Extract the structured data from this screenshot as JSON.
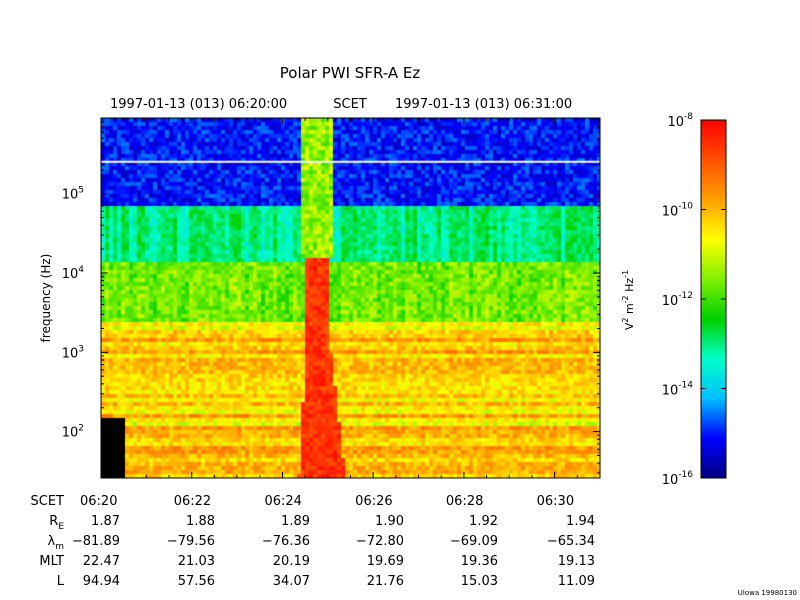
{
  "chart_data": {
    "type": "heatmap",
    "title": "Polar PWI SFR-A Ez",
    "time_range": {
      "start": "1997-01-13 (013) 06:20:00",
      "scet_label": "SCET",
      "end": "1997-01-13 (013) 06:31:00"
    },
    "ylabel": "frequency (Hz)",
    "y_scale": "log",
    "ylim": [
      26,
      900000
    ],
    "xlim_minutes": [
      0,
      11
    ],
    "y_ticks": [
      {
        "value": 100,
        "label": "10",
        "exp": "2"
      },
      {
        "value": 1000,
        "label": "10",
        "exp": "3"
      },
      {
        "value": 10000,
        "label": "10",
        "exp": "4"
      },
      {
        "value": 100000,
        "label": "10",
        "exp": "5"
      }
    ],
    "colorbar": {
      "label_parts": [
        "V",
        "2",
        " m",
        "-2",
        " Hz",
        "-1"
      ],
      "scale": "log",
      "range": [
        1e-16,
        1e-08
      ],
      "ticks": [
        {
          "value": 1e-08,
          "label": "10",
          "exp": "-8"
        },
        {
          "value": 1e-10,
          "label": "10",
          "exp": "-10"
        },
        {
          "value": 1e-12,
          "label": "10",
          "exp": "-12"
        },
        {
          "value": 1e-14,
          "label": "10",
          "exp": "-14"
        },
        {
          "value": 1e-16,
          "label": "10",
          "exp": "-16"
        }
      ]
    },
    "ephemeris": {
      "rows": [
        {
          "label": "SCET",
          "values": [
            "06:20",
            "06:22",
            "06:24",
            "06:26",
            "06:28",
            "06:30"
          ]
        },
        {
          "label": "R",
          "sub": "E",
          "values": [
            "1.87",
            "1.88",
            "1.89",
            "1.90",
            "1.92",
            "1.94"
          ]
        },
        {
          "label": "λ",
          "sub": "m",
          "values": [
            "−81.89",
            "−79.56",
            "−76.36",
            "−72.80",
            "−69.09",
            "−65.34"
          ]
        },
        {
          "label": "MLT",
          "values": [
            "22.47",
            "21.03",
            "20.19",
            "19.69",
            "19.36",
            "19.13"
          ]
        },
        {
          "label": "L",
          "values": [
            "94.94",
            "57.56",
            "34.07",
            "21.76",
            "15.03",
            "11.09"
          ]
        }
      ]
    },
    "features": [
      {
        "name": "broadband burst",
        "time_minutes": [
          4.5,
          5.0
        ],
        "freq_hz": [
          26,
          800000
        ]
      },
      {
        "name": "narrowband line",
        "freq_hz": 260000
      }
    ]
  },
  "credit": "Ulowa 19980130",
  "colors": {
    "scale": [
      "#00007f",
      "#0000ff",
      "#00bfff",
      "#00ffc8",
      "#00d000",
      "#80f000",
      "#ffff00",
      "#ffa000",
      "#ff5000",
      "#ff0000"
    ]
  }
}
